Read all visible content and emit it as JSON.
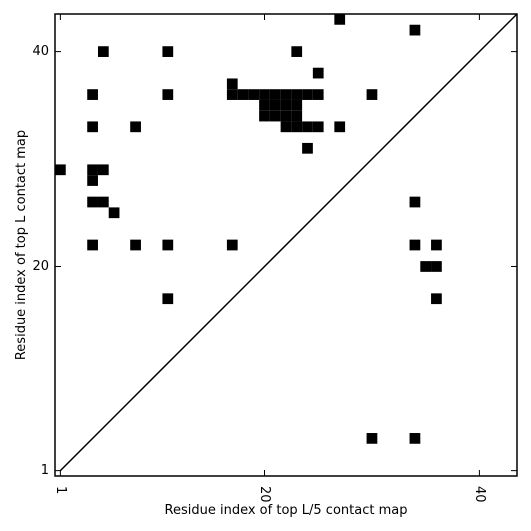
{
  "chart_data": {
    "type": "heatmap",
    "title": "",
    "xlabel": "Residue index of top L/5 contact map",
    "ylabel": "Residue index of top L contact map",
    "xlim": [
      0.5,
      43.5
    ],
    "ylim": [
      0.5,
      43.5
    ],
    "x_ticks": [
      1,
      20,
      40
    ],
    "y_ticks": [
      1,
      20,
      40
    ],
    "x_tick_rotation": -90,
    "grid": false,
    "legend": "none",
    "diagonal_line": true,
    "cell_color": "#000000",
    "background_color": "#ffffff",
    "cells": [
      [
        27,
        43
      ],
      [
        34,
        42
      ],
      [
        5,
        40
      ],
      [
        11,
        40
      ],
      [
        23,
        40
      ],
      [
        25,
        38
      ],
      [
        17,
        37
      ],
      [
        4,
        36
      ],
      [
        11,
        36
      ],
      [
        17,
        36
      ],
      [
        18,
        36
      ],
      [
        19,
        36
      ],
      [
        20,
        36
      ],
      [
        21,
        36
      ],
      [
        22,
        36
      ],
      [
        23,
        36
      ],
      [
        24,
        36
      ],
      [
        25,
        36
      ],
      [
        30,
        36
      ],
      [
        20,
        35
      ],
      [
        21,
        35
      ],
      [
        22,
        35
      ],
      [
        23,
        35
      ],
      [
        20,
        34
      ],
      [
        21,
        34
      ],
      [
        22,
        34
      ],
      [
        23,
        34
      ],
      [
        4,
        33
      ],
      [
        8,
        33
      ],
      [
        22,
        33
      ],
      [
        23,
        33
      ],
      [
        24,
        33
      ],
      [
        25,
        33
      ],
      [
        27,
        33
      ],
      [
        24,
        31
      ],
      [
        1,
        29
      ],
      [
        4,
        29
      ],
      [
        5,
        29
      ],
      [
        4,
        28
      ],
      [
        4,
        26
      ],
      [
        5,
        26
      ],
      [
        34,
        26
      ],
      [
        6,
        25
      ],
      [
        4,
        22
      ],
      [
        8,
        22
      ],
      [
        11,
        22
      ],
      [
        17,
        22
      ],
      [
        34,
        22
      ],
      [
        36,
        22
      ],
      [
        35,
        20
      ],
      [
        36,
        20
      ],
      [
        11,
        17
      ],
      [
        36,
        17
      ],
      [
        30,
        4
      ],
      [
        34,
        4
      ]
    ]
  }
}
